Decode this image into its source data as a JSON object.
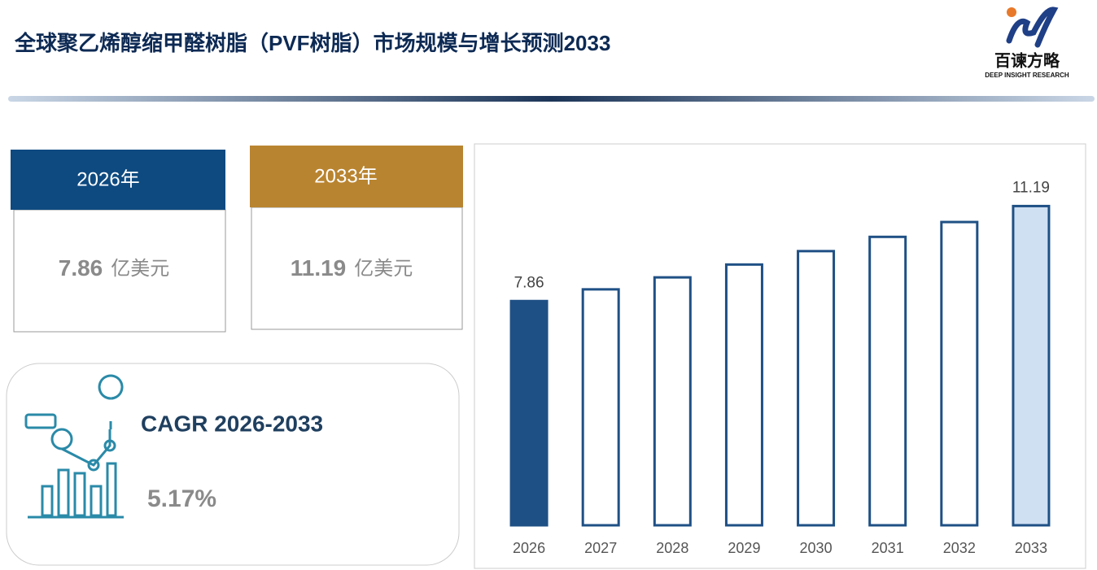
{
  "header": {
    "title": "全球聚乙烯醇缩甲醛树脂（PVF树脂）市场规模与增长预测2033",
    "logo_text": "百谏方略",
    "logo_subtext": "DEEP INSIGHT RESEARCH"
  },
  "cards": [
    {
      "header": "2026年",
      "value": 7.86,
      "unit": "亿美元"
    },
    {
      "header": "2033年",
      "value": 11.19,
      "unit": "亿美元"
    }
  ],
  "cagr": {
    "label": "CAGR 2026-2033",
    "value": "5.17%"
  },
  "chart_data": {
    "type": "bar",
    "categories": [
      "2026",
      "2027",
      "2028",
      "2029",
      "2030",
      "2031",
      "2032",
      "2033"
    ],
    "values": [
      7.86,
      8.27,
      8.69,
      9.14,
      9.61,
      10.11,
      10.63,
      11.19
    ],
    "fills": [
      "#1f5085",
      "#ffffff",
      "#ffffff",
      "#ffffff",
      "#ffffff",
      "#ffffff",
      "#ffffff",
      "#cfe0f3"
    ],
    "color": "#1f5085",
    "labeled": [
      0,
      7
    ],
    "ylim": [
      0,
      12
    ]
  }
}
